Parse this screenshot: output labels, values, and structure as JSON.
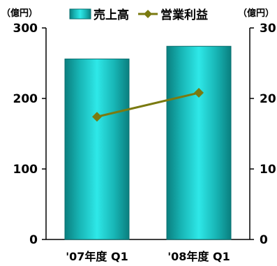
{
  "chart_data": {
    "type": "bar",
    "categories": [
      "'07年度 Q1",
      "'08年度 Q1"
    ],
    "series": [
      {
        "name": "売上高",
        "type": "bar",
        "axis": "left",
        "values": [
          256,
          274
        ],
        "color": "#1cc8c8"
      },
      {
        "name": "営業利益",
        "type": "line",
        "axis": "right",
        "values": [
          17.4,
          20.8
        ],
        "color": "#7a7a10"
      }
    ],
    "y_left": {
      "unit": "（億円）",
      "ylim": [
        0,
        300
      ],
      "ticks": [
        0,
        100,
        200,
        300
      ]
    },
    "y_right": {
      "unit": "（億円）",
      "ylim": [
        0,
        30
      ],
      "ticks": [
        0,
        10,
        20,
        30
      ]
    },
    "legend_position": "top-center",
    "grid": false
  }
}
